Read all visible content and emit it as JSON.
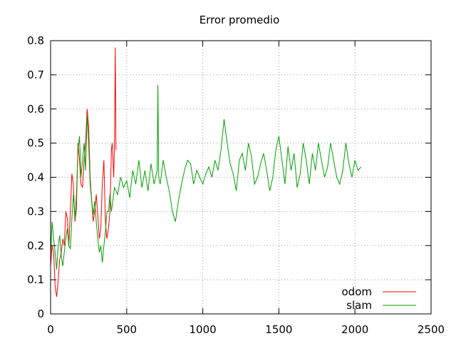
{
  "chart_data": {
    "type": "line",
    "title": "Error promedio",
    "xlabel": "",
    "ylabel": "",
    "xlim": [
      0,
      2500
    ],
    "ylim": [
      0,
      0.8
    ],
    "xticks": [
      0,
      500,
      1000,
      1500,
      2000,
      2500
    ],
    "yticks": [
      0,
      0.1,
      0.2,
      0.3,
      0.4,
      0.5,
      0.6,
      0.7,
      0.8
    ],
    "xtick_labels": [
      "0",
      "500",
      "1000",
      "1500",
      "2000",
      "2500"
    ],
    "ytick_labels": [
      "0",
      "0.1",
      "0.2",
      "0.3",
      "0.4",
      "0.5",
      "0.6",
      "0.7",
      "0.8"
    ],
    "grid": true,
    "legend_position": "bottom-right",
    "series": [
      {
        "name": "odom",
        "color": "#ff0000",
        "x": [
          0,
          10,
          20,
          30,
          40,
          50,
          60,
          70,
          80,
          90,
          100,
          110,
          120,
          130,
          140,
          150,
          160,
          170,
          180,
          190,
          200,
          210,
          220,
          230,
          240,
          250,
          260,
          270,
          280,
          290,
          300,
          310,
          320,
          330,
          340,
          350,
          360,
          370,
          380,
          390,
          400,
          405,
          410,
          415,
          420,
          425,
          430
        ],
        "y": [
          0.14,
          0.2,
          0.18,
          0.08,
          0.05,
          0.1,
          0.16,
          0.18,
          0.22,
          0.2,
          0.3,
          0.28,
          0.2,
          0.3,
          0.41,
          0.38,
          0.27,
          0.31,
          0.5,
          0.45,
          0.38,
          0.37,
          0.45,
          0.5,
          0.6,
          0.55,
          0.4,
          0.33,
          0.27,
          0.3,
          0.35,
          0.29,
          0.22,
          0.25,
          0.38,
          0.45,
          0.27,
          0.22,
          0.25,
          0.3,
          0.48,
          0.5,
          0.45,
          0.4,
          0.5,
          0.78,
          0.48
        ]
      },
      {
        "name": "slam",
        "color": "#00a000",
        "x": [
          0,
          10,
          20,
          30,
          40,
          50,
          60,
          70,
          80,
          90,
          100,
          110,
          120,
          130,
          140,
          150,
          160,
          170,
          180,
          190,
          200,
          210,
          220,
          230,
          240,
          250,
          260,
          270,
          280,
          290,
          300,
          310,
          320,
          330,
          340,
          350,
          360,
          370,
          380,
          390,
          400,
          420,
          440,
          460,
          480,
          500,
          520,
          540,
          560,
          580,
          600,
          620,
          640,
          660,
          680,
          700,
          705,
          710,
          720,
          740,
          760,
          780,
          800,
          820,
          840,
          860,
          880,
          900,
          920,
          940,
          960,
          980,
          1000,
          1020,
          1040,
          1060,
          1080,
          1100,
          1120,
          1140,
          1160,
          1180,
          1200,
          1220,
          1240,
          1260,
          1280,
          1300,
          1320,
          1340,
          1360,
          1380,
          1400,
          1420,
          1440,
          1460,
          1480,
          1500,
          1520,
          1540,
          1560,
          1580,
          1600,
          1620,
          1640,
          1660,
          1680,
          1700,
          1720,
          1740,
          1760,
          1780,
          1800,
          1820,
          1840,
          1860,
          1880,
          1900,
          1920,
          1940,
          1960,
          1980,
          2000,
          2020,
          2040
        ],
        "y": [
          0.17,
          0.27,
          0.22,
          0.18,
          0.13,
          0.2,
          0.23,
          0.17,
          0.14,
          0.18,
          0.22,
          0.25,
          0.2,
          0.19,
          0.28,
          0.35,
          0.28,
          0.35,
          0.48,
          0.52,
          0.4,
          0.45,
          0.5,
          0.42,
          0.58,
          0.5,
          0.38,
          0.33,
          0.29,
          0.33,
          0.27,
          0.22,
          0.18,
          0.2,
          0.15,
          0.2,
          0.24,
          0.3,
          0.3,
          0.35,
          0.3,
          0.37,
          0.35,
          0.4,
          0.37,
          0.39,
          0.34,
          0.42,
          0.38,
          0.45,
          0.37,
          0.42,
          0.36,
          0.44,
          0.38,
          0.42,
          0.67,
          0.4,
          0.38,
          0.45,
          0.4,
          0.36,
          0.3,
          0.27,
          0.33,
          0.38,
          0.42,
          0.45,
          0.44,
          0.38,
          0.42,
          0.4,
          0.38,
          0.41,
          0.43,
          0.4,
          0.45,
          0.42,
          0.48,
          0.57,
          0.5,
          0.44,
          0.41,
          0.36,
          0.45,
          0.47,
          0.42,
          0.5,
          0.46,
          0.38,
          0.4,
          0.44,
          0.47,
          0.42,
          0.36,
          0.4,
          0.48,
          0.52,
          0.45,
          0.38,
          0.49,
          0.42,
          0.47,
          0.37,
          0.41,
          0.5,
          0.45,
          0.38,
          0.47,
          0.42,
          0.5,
          0.45,
          0.4,
          0.43,
          0.5,
          0.45,
          0.4,
          0.38,
          0.42,
          0.5,
          0.44,
          0.4,
          0.45,
          0.42,
          0.43
        ]
      }
    ]
  }
}
